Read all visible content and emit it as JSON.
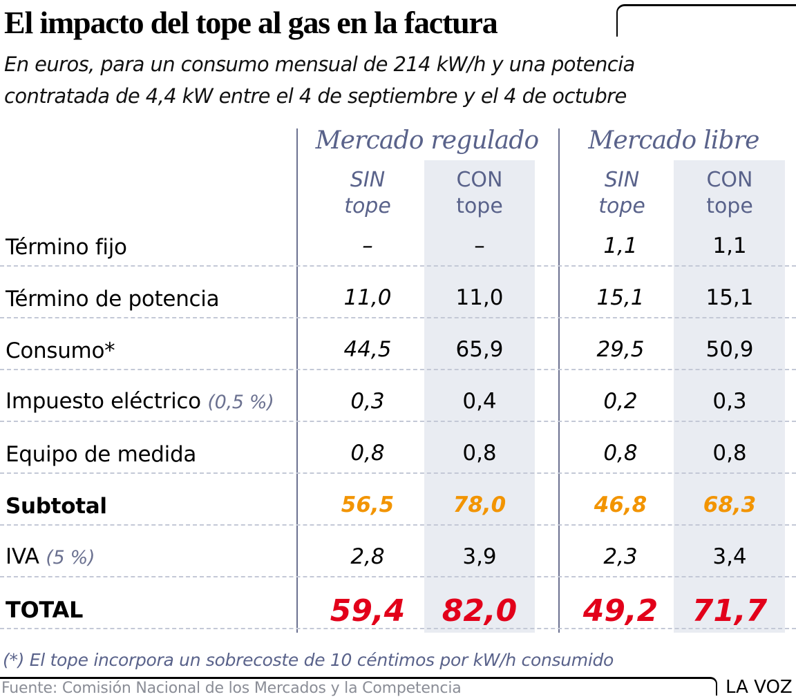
{
  "header": {
    "title": "El impacto del tope al gas en la factura",
    "subtitle_line1": "En euros, para un consumo mensual de 214 kW/h y una potencia",
    "subtitle_line2": "contratada de 4,4 kW entre el 4 de septiembre y el 4 de octubre"
  },
  "colors": {
    "group_header": "#59628a",
    "shaded_column": "#e9ecf2",
    "subtotal": "#f29400",
    "total": "#e2001a",
    "note": "#6b7190"
  },
  "chart_data": {
    "type": "table",
    "title": "El impacto del tope al gas en la factura",
    "subtitle": "En euros, para un consumo mensual de 214 kW/h y una potencia contratada de 4,4 kW entre el 4 de septiembre y el 4 de octubre",
    "groups": [
      {
        "name": "Mercado regulado",
        "columns": [
          {
            "line1": "SIN",
            "line2": "tope"
          },
          {
            "line1": "CON",
            "line2": "tope"
          }
        ]
      },
      {
        "name": "Mercado libre",
        "columns": [
          {
            "line1": "SIN",
            "line2": "tope"
          },
          {
            "line1": "CON",
            "line2": "tope"
          }
        ]
      }
    ],
    "rows": [
      {
        "label": "Término fijo",
        "note": "",
        "values": [
          "–",
          "–",
          "1,1",
          "1,1"
        ]
      },
      {
        "label": "Término de potencia",
        "note": "",
        "values": [
          "11,0",
          "11,0",
          "15,1",
          "15,1"
        ]
      },
      {
        "label": "Consumo*",
        "note": "",
        "values": [
          "44,5",
          "65,9",
          "29,5",
          "50,9"
        ]
      },
      {
        "label": "Impuesto eléctrico",
        "note": "(0,5 %)",
        "values": [
          "0,3",
          "0,4",
          "0,2",
          "0,3"
        ]
      },
      {
        "label": "Equipo de medida",
        "note": "",
        "values": [
          "0,8",
          "0,8",
          "0,8",
          "0,8"
        ]
      },
      {
        "label": "Subtotal",
        "note": "",
        "values": [
          "56,5",
          "78,0",
          "46,8",
          "68,3"
        ]
      },
      {
        "label": "IVA",
        "note": "(5 %)",
        "values": [
          "2,8",
          "3,9",
          "2,3",
          "3,4"
        ]
      },
      {
        "label": "TOTAL",
        "note": "",
        "values": [
          "59,4",
          "82,0",
          "49,2",
          "71,7"
        ]
      }
    ],
    "numeric_values": {
      "columns": [
        "Regulado SIN tope",
        "Regulado CON tope",
        "Libre SIN tope",
        "Libre CON tope"
      ],
      "Término fijo": [
        null,
        null,
        1.1,
        1.1
      ],
      "Término de potencia": [
        11.0,
        11.0,
        15.1,
        15.1
      ],
      "Consumo": [
        44.5,
        65.9,
        29.5,
        50.9
      ],
      "Impuesto eléctrico": [
        0.3,
        0.4,
        0.2,
        0.3
      ],
      "Equipo de medida": [
        0.8,
        0.8,
        0.8,
        0.8
      ],
      "Subtotal": [
        56.5,
        78.0,
        46.8,
        68.3
      ],
      "IVA": [
        2.8,
        3.9,
        2.3,
        3.4
      ],
      "TOTAL": [
        59.4,
        82.0,
        49.2,
        71.7
      ]
    },
    "unit": "euros"
  },
  "footer": {
    "footnote": "(*) El tope incorpora un sobrecoste de 10 céntimos por kW/h consumido",
    "source": "Fuente: Comisión Nacional de los Mercados y la Competencia",
    "brand": "LA VOZ"
  }
}
